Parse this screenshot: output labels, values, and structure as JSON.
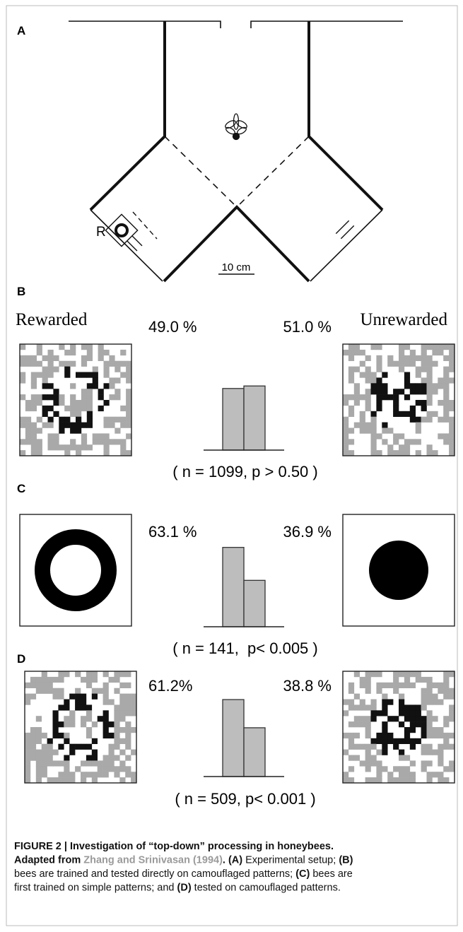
{
  "panel_a": {
    "letter": "A",
    "reward_label": "R",
    "scale_label": "10 cm"
  },
  "headers": {
    "left": "Rewarded",
    "right": "Unrewarded"
  },
  "panels": [
    {
      "letter": "B",
      "values": [
        49.0,
        51.0
      ],
      "value_labels": [
        "49.0 %",
        "51.0 %"
      ],
      "stats": "( n = 1099, p > 0.50 )"
    },
    {
      "letter": "C",
      "values": [
        63.1,
        36.9
      ],
      "value_labels": [
        "63.1 %",
        "36.9 %"
      ],
      "stats": "( n = 141,  p< 0.005 )"
    },
    {
      "letter": "D",
      "values": [
        61.2,
        38.8
      ],
      "value_labels": [
        "61.2%",
        "38.8 %"
      ],
      "stats": "( n = 509, p< 0.001 )"
    }
  ],
  "caption": {
    "lines": [
      [
        {
          "text": "FIGURE 2 | Investigation of “top-down” processing in honeybees.",
          "style": "bold"
        }
      ],
      [
        {
          "text": "Adapted from ",
          "style": "bold"
        },
        {
          "text": "Zhang and Srinivasan (1994)",
          "style": "link"
        },
        {
          "text": ". (A)",
          "style": "bold"
        },
        {
          "text": " Experimental setup; ",
          "style": "normal"
        },
        {
          "text": "(B)",
          "style": "bold"
        }
      ],
      [
        {
          "text": "bees are trained and tested directly on camouflaged patterns; ",
          "style": "normal"
        },
        {
          "text": "(C)",
          "style": "bold"
        },
        {
          "text": " bees are",
          "style": "normal"
        }
      ],
      [
        {
          "text": "first trained on simple patterns; and ",
          "style": "normal"
        },
        {
          "text": "(D)",
          "style": "bold"
        },
        {
          "text": " tested on camouflaged patterns.",
          "style": "normal"
        }
      ]
    ]
  }
}
